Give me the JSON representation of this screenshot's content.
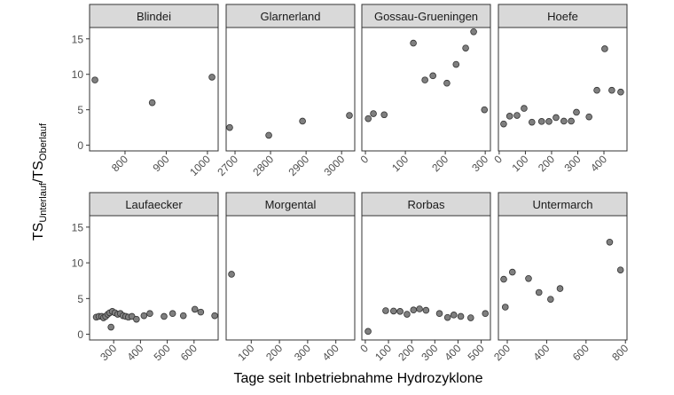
{
  "chart_data": {
    "type": "scatter",
    "xlabel": "Tage seit Inbetriebnahme Hydrozyklone",
    "ylabel": {
      "base1": "TS",
      "sub1": "Unterlauf",
      "sep": "/",
      "base2": "TS",
      "sub2": "Oberlauf"
    },
    "ylim": [
      -0.8,
      16.6
    ],
    "yticks": [
      0,
      5,
      10,
      15
    ],
    "grid": false,
    "point_color": "#7f7f7f",
    "strip_color": "#d9d9d9",
    "facets": [
      {
        "title": "Blindei",
        "xlim": [
          714,
          1026
        ],
        "xticks": [
          800,
          900,
          1000
        ],
        "points": [
          [
            727,
            9.2
          ],
          [
            866,
            6.0
          ],
          [
            1011,
            9.6
          ]
        ]
      },
      {
        "title": "Glarnerland",
        "xlim": [
          2675,
          3037
        ],
        "xticks": [
          2700,
          2800,
          2900,
          3000
        ],
        "points": [
          [
            2685,
            2.5
          ],
          [
            2795,
            1.4
          ],
          [
            2890,
            3.4
          ],
          [
            3022,
            4.2
          ]
        ]
      },
      {
        "title": "Gossau-Grueningen",
        "xlim": [
          -9,
          313
        ],
        "xticks": [
          0,
          100,
          200,
          300
        ],
        "points": [
          [
            7,
            3.75
          ],
          [
            20,
            4.45
          ],
          [
            47,
            4.3
          ],
          [
            120,
            14.4
          ],
          [
            149,
            9.2
          ],
          [
            169,
            9.8
          ],
          [
            204,
            8.75
          ],
          [
            227,
            11.4
          ],
          [
            251,
            13.7
          ],
          [
            271,
            16.0
          ],
          [
            298,
            5.0
          ]
        ]
      },
      {
        "title": "Hoefe",
        "xlim": [
          -3,
          488
        ],
        "xticks": [
          0,
          100,
          200,
          300,
          400
        ],
        "points": [
          [
            17,
            3.0
          ],
          [
            40,
            4.1
          ],
          [
            68,
            4.2
          ],
          [
            95,
            5.2
          ],
          [
            125,
            3.25
          ],
          [
            162,
            3.35
          ],
          [
            190,
            3.35
          ],
          [
            217,
            3.9
          ],
          [
            247,
            3.4
          ],
          [
            275,
            3.4
          ],
          [
            295,
            4.65
          ],
          [
            343,
            4.0
          ],
          [
            373,
            7.75
          ],
          [
            403,
            13.6
          ],
          [
            430,
            7.75
          ],
          [
            464,
            7.5
          ]
        ]
      },
      {
        "title": "Laufaecker",
        "xlim": [
          210,
          690
        ],
        "xticks": [
          300,
          400,
          500,
          600
        ],
        "points": [
          [
            235,
            2.4
          ],
          [
            245,
            2.5
          ],
          [
            255,
            2.5
          ],
          [
            262,
            2.3
          ],
          [
            270,
            2.5
          ],
          [
            278,
            2.8
          ],
          [
            285,
            3.0
          ],
          [
            290,
            1.0
          ],
          [
            295,
            3.2
          ],
          [
            305,
            3.0
          ],
          [
            315,
            2.8
          ],
          [
            325,
            2.9
          ],
          [
            335,
            2.6
          ],
          [
            345,
            2.5
          ],
          [
            355,
            2.4
          ],
          [
            368,
            2.5
          ],
          [
            385,
            2.1
          ],
          [
            413,
            2.6
          ],
          [
            435,
            2.9
          ],
          [
            488,
            2.5
          ],
          [
            520,
            2.9
          ],
          [
            560,
            2.6
          ],
          [
            603,
            3.5
          ],
          [
            625,
            3.1
          ],
          [
            677,
            2.6
          ]
        ]
      },
      {
        "title": "Morgental",
        "xlim": [
          11,
          467
        ],
        "xticks": [
          100,
          200,
          300,
          400
        ],
        "points": [
          [
            30,
            8.4
          ]
        ]
      },
      {
        "title": "Rorbas",
        "xlim": [
          -15,
          540
        ],
        "xticks": [
          0,
          100,
          200,
          300,
          400,
          500
        ],
        "points": [
          [
            12,
            0.4
          ],
          [
            88,
            3.3
          ],
          [
            122,
            3.25
          ],
          [
            150,
            3.2
          ],
          [
            180,
            2.8
          ],
          [
            208,
            3.4
          ],
          [
            234,
            3.55
          ],
          [
            262,
            3.35
          ],
          [
            320,
            2.9
          ],
          [
            355,
            2.35
          ],
          [
            382,
            2.7
          ],
          [
            412,
            2.5
          ],
          [
            455,
            2.3
          ],
          [
            518,
            2.9
          ]
        ]
      },
      {
        "title": "Untermarch",
        "xlim": [
          155,
          808
        ],
        "xticks": [
          200,
          400,
          600,
          800
        ],
        "points": [
          [
            182,
            7.7
          ],
          [
            190,
            3.8
          ],
          [
            226,
            8.7
          ],
          [
            308,
            7.8
          ],
          [
            361,
            5.85
          ],
          [
            420,
            4.9
          ],
          [
            468,
            6.4
          ],
          [
            720,
            12.9
          ],
          [
            775,
            9.0
          ]
        ]
      }
    ]
  }
}
